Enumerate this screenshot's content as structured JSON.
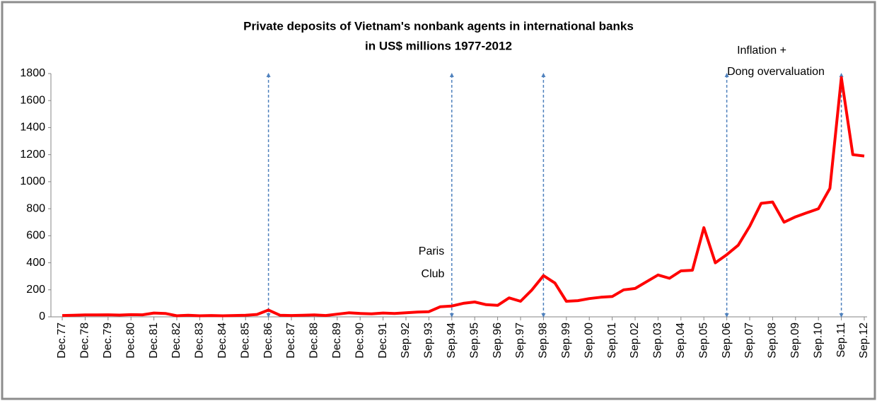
{
  "chart_data": {
    "type": "line",
    "title": "Private deposits of Vietnam's nonbank agents in international banks",
    "subtitle": "in US$ millions 1977-2012",
    "categories": [
      "Dec.77",
      null,
      "Dec.78",
      null,
      "Dec.79",
      null,
      "Dec.80",
      null,
      "Dec.81",
      null,
      "Dec.82",
      null,
      "Dec.83",
      null,
      "Dec.84",
      null,
      "Dec.85",
      null,
      "Dec.86",
      null,
      "Dec.87",
      null,
      "Dec.88",
      null,
      "Dec.89",
      null,
      "Dec.90",
      null,
      "Dec.91",
      null,
      "Sep.92",
      null,
      "Sep.93",
      null,
      "Sep.94",
      null,
      "Sep.95",
      null,
      "Sep.96",
      null,
      "Sep.97",
      null,
      "Sep.98",
      null,
      "Sep.99",
      null,
      "Sep.00",
      null,
      "Sep.01",
      null,
      "Sep.02",
      null,
      "Sep.03",
      null,
      "Sep.04",
      null,
      "Sep.05",
      null,
      "Sep.06",
      null,
      "Sep.07",
      null,
      "Sep.08",
      null,
      "Sep.09",
      null,
      "Sep.10",
      null,
      "Sep.11",
      null,
      "Sep.12"
    ],
    "series": [
      {
        "color": "#ff0000",
        "values": [
          10,
          12,
          14,
          14,
          15,
          13,
          16,
          15,
          28,
          25,
          8,
          12,
          8,
          10,
          8,
          10,
          12,
          18,
          50,
          12,
          10,
          12,
          14,
          10,
          20,
          30,
          25,
          22,
          28,
          25,
          30,
          35,
          38,
          75,
          80,
          100,
          110,
          90,
          85,
          140,
          115,
          200,
          305,
          250,
          115,
          120,
          135,
          145,
          150,
          200,
          210,
          260,
          310,
          285,
          340,
          345,
          660,
          400,
          460,
          530,
          670,
          840,
          850,
          700,
          740,
          770,
          800,
          950,
          1770,
          1200,
          1190
        ]
      }
    ],
    "ylim": [
      0,
      1800
    ],
    "yticks": [
      0,
      200,
      400,
      600,
      800,
      1000,
      1200,
      1400,
      1600,
      1800
    ],
    "annotations": [
      "Paris",
      "Club",
      "Inflation +",
      "Dong overvaluation"
    ],
    "grid": false
  }
}
